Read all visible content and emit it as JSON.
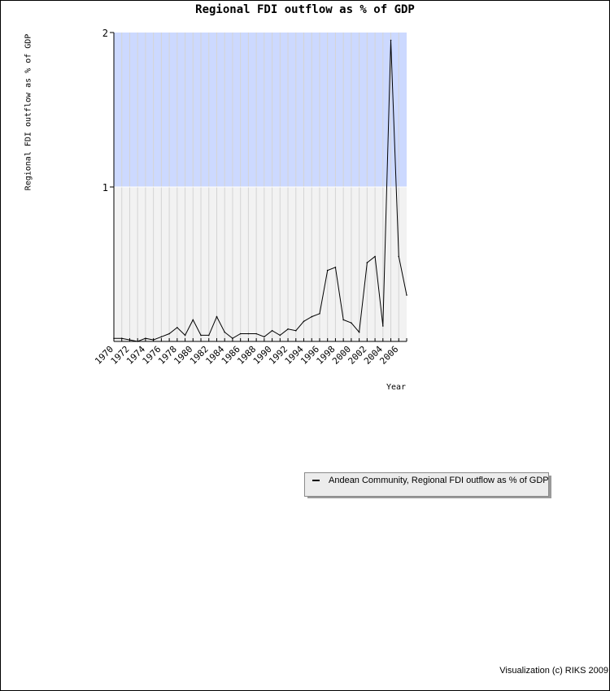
{
  "chart_data": {
    "type": "line",
    "title": "Regional FDI outflow as % of GDP",
    "xlabel": "Year",
    "ylabel": "Regional FDI outflow as % of GDP",
    "xlim": [
      1970,
      2007
    ],
    "ylim": [
      0,
      2
    ],
    "x_ticks": [
      1970,
      1972,
      1974,
      1976,
      1978,
      1980,
      1982,
      1984,
      1986,
      1988,
      1990,
      1992,
      1994,
      1996,
      1998,
      2000,
      2002,
      2004,
      2006
    ],
    "y_ticks": [
      1,
      2
    ],
    "bands": [
      {
        "from": 0,
        "to": 1,
        "color": "#f2f2f2"
      },
      {
        "from": 1,
        "to": 2,
        "color": "#ccd9ff"
      }
    ],
    "grid": "vertical",
    "legend_position": "bottom-right",
    "series": [
      {
        "name": "Andean Community, Regional FDI outflow as % of GDP",
        "color": "#000000",
        "x": [
          1970,
          1971,
          1972,
          1973,
          1974,
          1975,
          1976,
          1977,
          1978,
          1979,
          1980,
          1981,
          1982,
          1983,
          1984,
          1985,
          1986,
          1987,
          1988,
          1989,
          1990,
          1991,
          1992,
          1993,
          1994,
          1995,
          1996,
          1997,
          1998,
          1999,
          2000,
          2001,
          2002,
          2003,
          2004,
          2005,
          2006,
          2007
        ],
        "values": [
          0.02,
          0.02,
          0.01,
          0.0,
          0.02,
          0.01,
          0.03,
          0.05,
          0.09,
          0.04,
          0.14,
          0.04,
          0.04,
          0.16,
          0.06,
          0.02,
          0.05,
          0.05,
          0.05,
          0.03,
          0.07,
          0.04,
          0.08,
          0.07,
          0.13,
          0.16,
          0.18,
          0.46,
          0.48,
          0.14,
          0.12,
          0.06,
          0.51,
          0.55,
          0.1,
          1.95,
          0.55,
          0.3
        ]
      }
    ]
  },
  "legend": {
    "label": "Andean Community, Regional FDI outflow as % of GDP"
  },
  "footer": {
    "credit": "Visualization (c) RIKS 2009"
  }
}
